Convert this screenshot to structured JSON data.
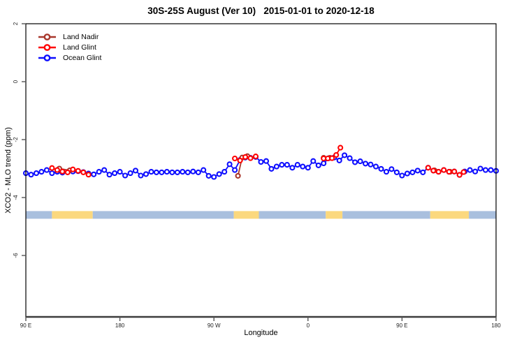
{
  "chart": {
    "title": "30S-25S August (Ver 10)   2015-01-01 to 2020-12-18",
    "x_label": "Longitude",
    "y_label": "XCO2 - MLO trend (ppm)"
  },
  "legend": {
    "items": [
      {
        "label": "Land Nadir",
        "color": "#A8372C"
      },
      {
        "label": "Land Glint",
        "color": "#FF0000"
      },
      {
        "label": "Ocean Glint",
        "color": "#0D0DFF"
      }
    ]
  },
  "chart_data": {
    "type": "line",
    "title": "30S-25S August (Ver 10)   2015-01-01 to 2020-12-18",
    "xlabel": "Longitude",
    "ylabel": "XCO2 - MLO trend (ppm)",
    "x_axis": {
      "range_deg": [
        90,
        540
      ],
      "wraps_longitude": true,
      "ticks": [
        {
          "deg": 90,
          "label": "90 E"
        },
        {
          "deg": 180,
          "label": "180"
        },
        {
          "deg": 270,
          "label": "90 W"
        },
        {
          "deg": 360,
          "label": "0"
        },
        {
          "deg": 450,
          "label": "90 E"
        },
        {
          "deg": 540,
          "label": "180"
        }
      ]
    },
    "y_axis": {
      "ticks": [
        2,
        0,
        -2,
        -4,
        -6
      ],
      "range": [
        2,
        -8.2
      ],
      "units": "ppm"
    },
    "series": [
      {
        "name": "Land Nadir",
        "color": "#A8372C",
        "marker": "open-circle",
        "points": [
          [
            122,
            -3.0
          ],
          [
            132,
            -3.06
          ],
          [
            293,
            -3.25
          ],
          [
            297,
            -2.62
          ],
          [
            302,
            -2.57
          ],
          [
            375,
            -2.63
          ],
          [
            381,
            -2.63
          ],
          [
            481,
            -3.06
          ],
          [
            496,
            -3.11
          ]
        ]
      },
      {
        "name": "Land Glint",
        "color": "#FF0000",
        "marker": "open-circle",
        "points": [
          [
            115,
            -2.98
          ],
          [
            120,
            -3.05
          ],
          [
            125,
            -3.1
          ],
          [
            130,
            -3.13
          ],
          [
            135,
            -3.03
          ],
          [
            140,
            -3.08
          ],
          [
            145,
            -3.13
          ],
          [
            150,
            -3.21
          ],
          [
            290,
            -2.65
          ],
          [
            295,
            -2.72
          ],
          [
            300,
            -2.6
          ],
          [
            305,
            -2.64
          ],
          [
            310,
            -2.58
          ],
          [
            375,
            -2.65
          ],
          [
            379,
            -2.65
          ],
          [
            383,
            -2.64
          ],
          [
            387,
            -2.53
          ],
          [
            391,
            -2.28
          ],
          [
            475,
            -2.97
          ],
          [
            480,
            -3.07
          ],
          [
            485,
            -3.11
          ],
          [
            490,
            -3.05
          ],
          [
            495,
            -3.11
          ],
          [
            500,
            -3.1
          ],
          [
            505,
            -3.22
          ],
          [
            509,
            -3.12
          ]
        ]
      },
      {
        "name": "Ocean Glint",
        "color": "#0D0DFF",
        "marker": "open-circle",
        "lon_start": 90,
        "lon_step": 5,
        "values": [
          -3.16,
          -3.21,
          -3.16,
          -3.11,
          -3.05,
          -3.16,
          -3.11,
          -3.14,
          -3.12,
          -3.1,
          -3.09,
          -3.12,
          -3.17,
          -3.2,
          -3.11,
          -3.05,
          -3.21,
          -3.16,
          -3.11,
          -3.24,
          -3.16,
          -3.07,
          -3.24,
          -3.19,
          -3.11,
          -3.13,
          -3.13,
          -3.11,
          -3.13,
          -3.13,
          -3.11,
          -3.13,
          -3.1,
          -3.13,
          -3.05,
          -3.25,
          -3.29,
          -3.19,
          -3.11,
          -2.85,
          -3.05,
          -2.7,
          -2.62,
          -2.63,
          -2.6,
          -2.77,
          -2.74,
          -3.01,
          -2.93,
          -2.87,
          -2.87,
          -2.97,
          -2.87,
          -2.93,
          -2.97,
          -2.74,
          -2.89,
          -2.82,
          -2.64,
          -2.62,
          -2.72,
          -2.54,
          -2.64,
          -2.78,
          -2.75,
          -2.83,
          -2.86,
          -2.93,
          -3.01,
          -3.11,
          -3.02,
          -3.13,
          -3.24,
          -3.17,
          -3.13,
          -3.07,
          -3.13,
          -2.97,
          -3.07,
          -3.11,
          -3.05,
          -3.11,
          -3.1,
          -3.22,
          -3.1,
          -3.05,
          -3.1,
          -3.0,
          -3.05,
          -3.05,
          -3.08
        ]
      }
    ],
    "surface_band": {
      "description": "land/ocean indicator strip",
      "y_center_ppm": -4.6,
      "colors": {
        "ocean": "#A9BFDE",
        "land": "#FBD87E"
      },
      "segments": [
        {
          "from": 90,
          "to": 115,
          "type": "ocean"
        },
        {
          "from": 115,
          "to": 154,
          "type": "land"
        },
        {
          "from": 154,
          "to": 289,
          "type": "ocean"
        },
        {
          "from": 289,
          "to": 313,
          "type": "land"
        },
        {
          "from": 313,
          "to": 377,
          "type": "ocean"
        },
        {
          "from": 377,
          "to": 393,
          "type": "land"
        },
        {
          "from": 393,
          "to": 477,
          "type": "ocean"
        },
        {
          "from": 477,
          "to": 514,
          "type": "land"
        },
        {
          "from": 514,
          "to": 540,
          "type": "ocean"
        }
      ]
    },
    "legend_position": "top-left",
    "grid": false
  }
}
